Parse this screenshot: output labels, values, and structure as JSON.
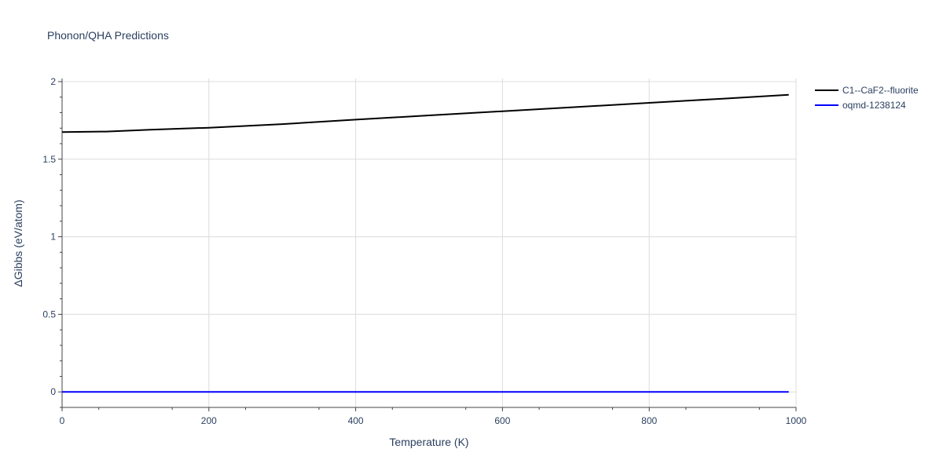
{
  "chart_data": {
    "type": "line",
    "title": "Phonon/QHA Predictions",
    "xlabel": "Temperature (K)",
    "ylabel": "ΔGibbs (eV/atom)",
    "xlim": [
      0,
      1000
    ],
    "ylim": [
      -0.1,
      2.02
    ],
    "x_ticks": [
      0,
      200,
      400,
      600,
      800,
      1000
    ],
    "x_tick_labels": [
      "0",
      "200",
      "400",
      "600",
      "800",
      "1000"
    ],
    "y_ticks": [
      0,
      0.5,
      1,
      1.5,
      2
    ],
    "y_tick_labels": [
      "0",
      "0.5",
      "1",
      "1.5",
      "2"
    ],
    "grid": true,
    "legend_position": "top-right",
    "series": [
      {
        "name": "C1--CaF2--fluorite",
        "color": "#000000",
        "x": [
          0,
          60,
          120,
          200,
          300,
          400,
          500,
          600,
          700,
          800,
          900,
          990
        ],
        "y": [
          1.675,
          1.678,
          1.69,
          1.703,
          1.726,
          1.755,
          1.782,
          1.809,
          1.836,
          1.863,
          1.89,
          1.915
        ]
      },
      {
        "name": "oqmd-1238124",
        "color": "#0000ff",
        "x": [
          0,
          990
        ],
        "y": [
          0,
          0
        ]
      }
    ]
  }
}
